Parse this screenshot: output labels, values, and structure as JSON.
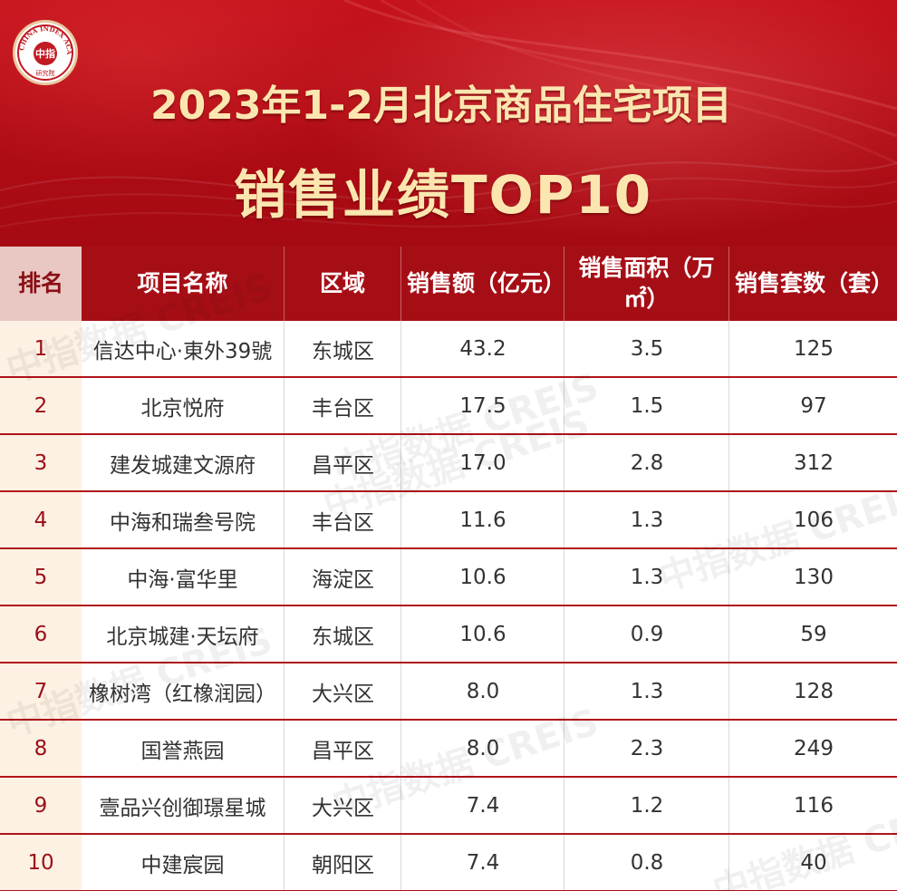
{
  "logo": {
    "ring_text": "CHINA INDEX ACADEMY",
    "center_text": "中指",
    "bottom_text": "研究院"
  },
  "title": {
    "line1": "2023年1-2月北京商品住宅项目",
    "line2": "销售业绩TOP10"
  },
  "table": {
    "headers": {
      "rank": "排名",
      "name": "项目名称",
      "district": "区域",
      "amount": "销售额（亿元）",
      "area": "销售面积（万㎡）",
      "units": "销售套数（套）"
    },
    "rows": [
      {
        "rank": "1",
        "name": "信达中心·東外39號",
        "district": "东城区",
        "amount": "43.2",
        "area": "3.5",
        "units": "125"
      },
      {
        "rank": "2",
        "name": "北京悦府",
        "district": "丰台区",
        "amount": "17.5",
        "area": "1.5",
        "units": "97"
      },
      {
        "rank": "3",
        "name": "建发城建文源府",
        "district": "昌平区",
        "amount": "17.0",
        "area": "2.8",
        "units": "312"
      },
      {
        "rank": "4",
        "name": "中海和瑞叁号院",
        "district": "丰台区",
        "amount": "11.6",
        "area": "1.3",
        "units": "106"
      },
      {
        "rank": "5",
        "name": "中海·富华里",
        "district": "海淀区",
        "amount": "10.6",
        "area": "1.3",
        "units": "130"
      },
      {
        "rank": "6",
        "name": "北京城建·天坛府",
        "district": "东城区",
        "amount": "10.6",
        "area": "0.9",
        "units": "59"
      },
      {
        "rank": "7",
        "name": "橡树湾（红橡润园）",
        "district": "大兴区",
        "amount": "8.0",
        "area": "1.3",
        "units": "128"
      },
      {
        "rank": "8",
        "name": "国誉燕园",
        "district": "昌平区",
        "amount": "8.0",
        "area": "2.3",
        "units": "249"
      },
      {
        "rank": "9",
        "name": "壹品兴创御璟星城",
        "district": "大兴区",
        "amount": "7.4",
        "area": "1.2",
        "units": "116"
      },
      {
        "rank": "10",
        "name": "中建宸园",
        "district": "朝阳区",
        "amount": "7.4",
        "area": "0.8",
        "units": "40"
      }
    ]
  },
  "watermark": "中指数据 CREIS",
  "colors": {
    "banner_red": "#b00c15",
    "header_red": "#a60e16",
    "title_gold": "#fbe6b0",
    "rank_text": "#9b0f16",
    "rank_bg": "#fdf1e4"
  }
}
